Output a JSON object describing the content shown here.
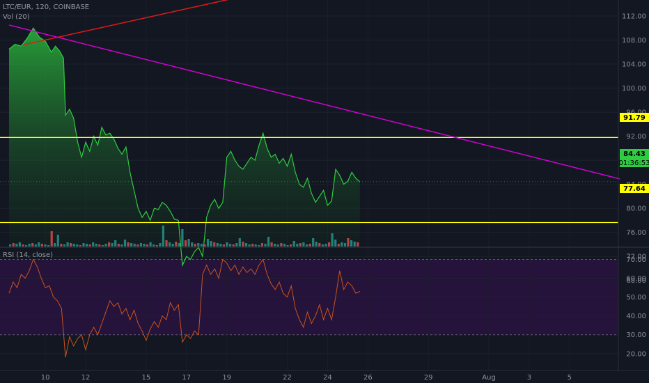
{
  "header": {
    "symbol_line": "LTC/EUR, 120, COINBASE",
    "volume_label": "Vol (20)",
    "rsi_label": "RSI (14, close)"
  },
  "price_tags": {
    "resistance": "91.79",
    "current": "84.43",
    "countdown": "01:36:53",
    "support": "77.64"
  },
  "colors": {
    "background": "#131722",
    "area_line": "#2ecc40",
    "horizontal_levels": "#ffff00",
    "pink_trendline": "#d500d5",
    "red_trendline": "#e01b1b",
    "rsi_line": "#c8541c",
    "rsi_band": "#2a1340",
    "volume_up": "#26a69a",
    "volume_down": "#ef5350"
  },
  "chart_data": [
    {
      "type": "area",
      "name": "price",
      "x_ticks": [
        "10",
        "12",
        "15",
        "17",
        "19",
        "22",
        "24",
        "26",
        "29",
        "Aug",
        "3",
        "5"
      ],
      "y_ticks": [
        "112.00",
        "108.00",
        "104.00",
        "100.00",
        "96.00",
        "92.00",
        "88.00",
        "84.00",
        "80.00",
        "76.00",
        "72.00",
        "68.00"
      ],
      "ylim": [
        66,
        114
      ],
      "x_range_days": [
        8.2,
        36.5
      ],
      "points": [
        [
          8.2,
          106.5
        ],
        [
          8.5,
          107.3
        ],
        [
          8.8,
          107.0
        ],
        [
          9.1,
          108.3
        ],
        [
          9.4,
          110.0
        ],
        [
          9.7,
          108.5
        ],
        [
          10.0,
          107.8
        ],
        [
          10.3,
          106.0
        ],
        [
          10.5,
          107.0
        ],
        [
          10.7,
          106.2
        ],
        [
          10.9,
          105.0
        ],
        [
          11.0,
          95.5
        ],
        [
          11.2,
          96.5
        ],
        [
          11.4,
          95.0
        ],
        [
          11.6,
          91.0
        ],
        [
          11.8,
          88.5
        ],
        [
          12.0,
          91.0
        ],
        [
          12.2,
          89.5
        ],
        [
          12.4,
          92.0
        ],
        [
          12.6,
          90.5
        ],
        [
          12.8,
          93.5
        ],
        [
          13.0,
          92.2
        ],
        [
          13.2,
          92.5
        ],
        [
          13.4,
          91.5
        ],
        [
          13.6,
          90.0
        ],
        [
          13.8,
          89.0
        ],
        [
          14.0,
          90.2
        ],
        [
          14.2,
          86.0
        ],
        [
          14.4,
          83.0
        ],
        [
          14.6,
          80.0
        ],
        [
          14.8,
          78.5
        ],
        [
          15.0,
          79.5
        ],
        [
          15.2,
          78.0
        ],
        [
          15.4,
          80.0
        ],
        [
          15.6,
          79.8
        ],
        [
          15.8,
          81.0
        ],
        [
          16.0,
          80.5
        ],
        [
          16.2,
          79.5
        ],
        [
          16.4,
          78.2
        ],
        [
          16.6,
          78.0
        ],
        [
          16.8,
          70.5
        ],
        [
          17.0,
          72.0
        ],
        [
          17.2,
          71.5
        ],
        [
          17.4,
          72.8
        ],
        [
          17.6,
          73.5
        ],
        [
          17.8,
          72.0
        ],
        [
          18.0,
          78.5
        ],
        [
          18.2,
          80.5
        ],
        [
          18.4,
          81.5
        ],
        [
          18.6,
          80.0
        ],
        [
          18.8,
          81.0
        ],
        [
          19.0,
          88.5
        ],
        [
          19.2,
          89.5
        ],
        [
          19.4,
          88.0
        ],
        [
          19.6,
          87.0
        ],
        [
          19.8,
          86.5
        ],
        [
          20.0,
          87.5
        ],
        [
          20.2,
          88.5
        ],
        [
          20.4,
          88.0
        ],
        [
          20.6,
          90.5
        ],
        [
          20.8,
          92.5
        ],
        [
          21.0,
          90.0
        ],
        [
          21.2,
          88.5
        ],
        [
          21.4,
          89.0
        ],
        [
          21.6,
          87.5
        ],
        [
          21.8,
          88.3
        ],
        [
          22.0,
          87.0
        ],
        [
          22.2,
          89.0
        ],
        [
          22.4,
          86.0
        ],
        [
          22.6,
          84.0
        ],
        [
          22.8,
          83.5
        ],
        [
          23.0,
          85.0
        ],
        [
          23.2,
          82.5
        ],
        [
          23.4,
          81.0
        ],
        [
          23.6,
          82.0
        ],
        [
          23.8,
          83.0
        ],
        [
          24.0,
          80.5
        ],
        [
          24.2,
          81.2
        ],
        [
          24.4,
          86.5
        ],
        [
          24.6,
          85.5
        ],
        [
          24.8,
          84.0
        ],
        [
          25.0,
          84.5
        ],
        [
          25.2,
          86.0
        ],
        [
          25.4,
          85.0
        ],
        [
          25.6,
          84.4
        ]
      ],
      "horizontal_levels": [
        91.79,
        77.64
      ],
      "current_price": 84.43
    },
    {
      "type": "bar",
      "name": "Vol (20)",
      "values": [
        3,
        5,
        4,
        6,
        3,
        2,
        4,
        5,
        3,
        6,
        4,
        3,
        2,
        22,
        5,
        17,
        4,
        3,
        6,
        5,
        4,
        3,
        2,
        5,
        4,
        3,
        6,
        4,
        3,
        2,
        4,
        6,
        5,
        9,
        4,
        3,
        10,
        6,
        5,
        4,
        3,
        5,
        4,
        3,
        6,
        3,
        2,
        5,
        30,
        9,
        6,
        4,
        7,
        5,
        25,
        9,
        11,
        6,
        4,
        5,
        4,
        3,
        11,
        8,
        6,
        5,
        4,
        3,
        6,
        4,
        3,
        5,
        12,
        7,
        5,
        3,
        4,
        3,
        2,
        5,
        4,
        14,
        6,
        4,
        3,
        5,
        4,
        2,
        3,
        8,
        4,
        5,
        6,
        3,
        4,
        12,
        7,
        5,
        3,
        4,
        6,
        19,
        10,
        4,
        6,
        5,
        12,
        9,
        7,
        6
      ],
      "ylim": [
        0,
        90
      ]
    },
    {
      "type": "line",
      "name": "RSI (14, close)",
      "y_ticks": [
        "70.00",
        "60.00",
        "50.00",
        "40.00",
        "30.00",
        "20.00"
      ],
      "ylim": [
        15,
        75
      ],
      "band": [
        30,
        70
      ],
      "points": [
        [
          8.2,
          52
        ],
        [
          8.4,
          58
        ],
        [
          8.6,
          55
        ],
        [
          8.8,
          62
        ],
        [
          9.0,
          60
        ],
        [
          9.2,
          64
        ],
        [
          9.4,
          70
        ],
        [
          9.6,
          66
        ],
        [
          9.8,
          60
        ],
        [
          10.0,
          55
        ],
        [
          10.2,
          56
        ],
        [
          10.4,
          50
        ],
        [
          10.6,
          48
        ],
        [
          10.8,
          44
        ],
        [
          11.0,
          18
        ],
        [
          11.2,
          29
        ],
        [
          11.4,
          24
        ],
        [
          11.6,
          28
        ],
        [
          11.8,
          30
        ],
        [
          12.0,
          22
        ],
        [
          12.2,
          30
        ],
        [
          12.4,
          34
        ],
        [
          12.6,
          30
        ],
        [
          12.8,
          36
        ],
        [
          13.0,
          42
        ],
        [
          13.2,
          48
        ],
        [
          13.4,
          45
        ],
        [
          13.6,
          47
        ],
        [
          13.8,
          41
        ],
        [
          14.0,
          44
        ],
        [
          14.2,
          38
        ],
        [
          14.4,
          43
        ],
        [
          14.6,
          36
        ],
        [
          14.8,
          32
        ],
        [
          15.0,
          27
        ],
        [
          15.2,
          33
        ],
        [
          15.4,
          37
        ],
        [
          15.6,
          34
        ],
        [
          15.8,
          40
        ],
        [
          16.0,
          38
        ],
        [
          16.2,
          47
        ],
        [
          16.4,
          43
        ],
        [
          16.6,
          46
        ],
        [
          16.8,
          26
        ],
        [
          17.0,
          30
        ],
        [
          17.2,
          28
        ],
        [
          17.4,
          32
        ],
        [
          17.6,
          30
        ],
        [
          17.8,
          62
        ],
        [
          18.0,
          67
        ],
        [
          18.2,
          62
        ],
        [
          18.4,
          65
        ],
        [
          18.6,
          60
        ],
        [
          18.8,
          70
        ],
        [
          19.0,
          68
        ],
        [
          19.2,
          64
        ],
        [
          19.4,
          67
        ],
        [
          19.6,
          62
        ],
        [
          19.8,
          66
        ],
        [
          20.0,
          63
        ],
        [
          20.2,
          65
        ],
        [
          20.4,
          62
        ],
        [
          20.6,
          67
        ],
        [
          20.8,
          70
        ],
        [
          21.0,
          62
        ],
        [
          21.2,
          57
        ],
        [
          21.4,
          54
        ],
        [
          21.6,
          58
        ],
        [
          21.8,
          52
        ],
        [
          22.0,
          50
        ],
        [
          22.2,
          56
        ],
        [
          22.4,
          44
        ],
        [
          22.6,
          38
        ],
        [
          22.8,
          34
        ],
        [
          23.0,
          42
        ],
        [
          23.2,
          36
        ],
        [
          23.4,
          40
        ],
        [
          23.6,
          46
        ],
        [
          23.8,
          38
        ],
        [
          24.0,
          44
        ],
        [
          24.2,
          38
        ],
        [
          24.4,
          50
        ],
        [
          24.6,
          64
        ],
        [
          24.8,
          54
        ],
        [
          25.0,
          58
        ],
        [
          25.2,
          56
        ],
        [
          25.4,
          52
        ],
        [
          25.6,
          53
        ]
      ]
    }
  ]
}
